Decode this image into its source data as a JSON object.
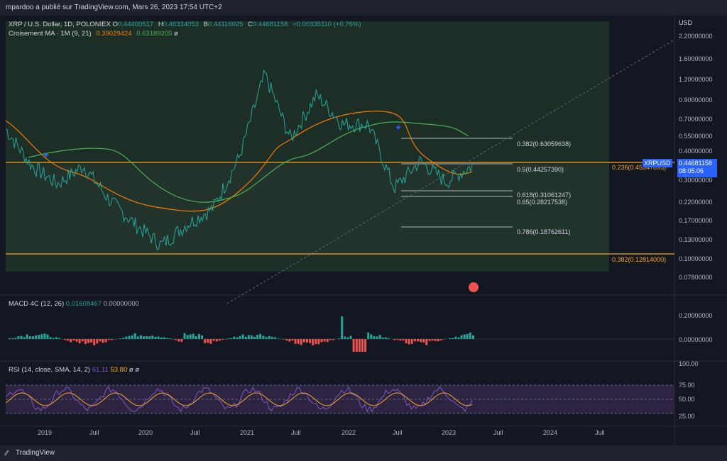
{
  "header": {
    "published_by": "mpardoo a publié sur TradingView.com, Mars 26, 2023 17:54 UTC+2"
  },
  "symbol": {
    "name": "XRP / U.S. Dollar, 1D, POLONIEX",
    "open_label": "O",
    "open": "0.44400517",
    "high_label": "H",
    "high": "0.46334053",
    "low_label": "B",
    "low": "0.44116025",
    "close_label": "C",
    "close": "0.44681158",
    "change": "+0.00335110 (+0.76%)"
  },
  "ma_indicator": {
    "label": "Croisement MA · 1M (9, 21)",
    "value1": "0.39029424",
    "value2": "0.63189205",
    "empty": "ø"
  },
  "macd": {
    "label": "MACD 4C (12, 26)",
    "value1": "0.01608467",
    "value2": "0.00000000"
  },
  "rsi": {
    "label": "RSI (14, close, SMA, 14, 2)",
    "value1": "61.11",
    "value2": "53.80",
    "e1": "ø",
    "e2": "ø"
  },
  "currency": "USD",
  "price_axis": [
    "2.20000000",
    "1.60000000",
    "1.20000000",
    "0.90000000",
    "0.70000000",
    "0.55000000",
    "0.40000000",
    "0.30000000",
    "0.22000000",
    "0.17000000",
    "0.13000000",
    "0.10000000",
    "0.07800000"
  ],
  "macd_axis": [
    "0.20000000",
    "0.00000000"
  ],
  "rsi_axis": [
    "100.00",
    "75.00",
    "50.00",
    "25.00"
  ],
  "x_labels": [
    "2019",
    "Juil",
    "2020",
    "Juil",
    "2021",
    "Juil",
    "2022",
    "Juil",
    "2023",
    "Juil",
    "2024",
    "Juil"
  ],
  "fib_levels": [
    {
      "label": "0.382(0.63059638)"
    },
    {
      "label": "0.5(0.44257390)"
    },
    {
      "label": "0.618(0.31061247)"
    },
    {
      "label": "0.65(0.28217538)"
    },
    {
      "label": "0.786(0.18762611)"
    }
  ],
  "fib_major": [
    {
      "label": "0.236(0.45347893)"
    },
    {
      "label": "0.382(0.12814000)"
    }
  ],
  "current_price": {
    "symbol": "XRPUSD",
    "value": "0.44681158",
    "countdown": "08:05:06"
  },
  "footer": {
    "brand": "TradingView"
  },
  "colors": {
    "up": "#26a69a",
    "down": "#ef5350",
    "ma_fast": "#f57c00",
    "ma_slow": "#4caf50",
    "fib_orange": "#f9a825",
    "accent": "#2962ff"
  },
  "chart_data": {
    "type": "line",
    "title": "XRP / U.S. Dollar, 1D, POLONIEX",
    "y_scale": "log",
    "ylim": [
      0.078,
      2.2
    ],
    "x": [
      "2018-11",
      "2019-01",
      "2019-04",
      "2019-07",
      "2019-10",
      "2020-01",
      "2020-03",
      "2020-07",
      "2020-10",
      "2021-01",
      "2021-04",
      "2021-07",
      "2021-10",
      "2022-01",
      "2022-04",
      "2022-06",
      "2022-09",
      "2022-12",
      "2023-03"
    ],
    "series": [
      {
        "name": "XRP / U.S. Dollar",
        "values": [
          0.75,
          0.45,
          0.35,
          0.45,
          0.28,
          0.2,
          0.15,
          0.2,
          0.25,
          0.5,
          1.6,
          0.65,
          1.2,
          0.8,
          0.8,
          0.33,
          0.48,
          0.36,
          0.45
        ]
      }
    ]
  }
}
